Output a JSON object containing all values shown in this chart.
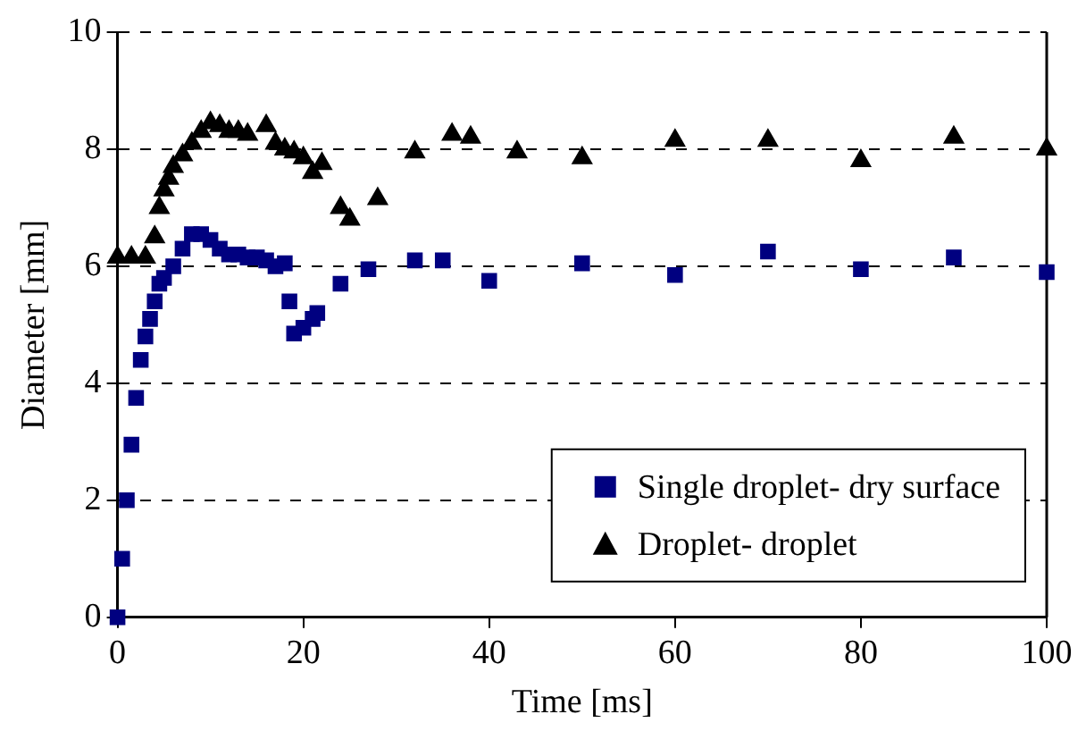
{
  "chart_data": {
    "type": "scatter",
    "xlabel": "Time [ms]",
    "ylabel": "Diameter [mm]",
    "xlim": [
      0,
      100
    ],
    "xticks": [
      0,
      20,
      40,
      60,
      80,
      100
    ],
    "ylim": [
      0,
      10
    ],
    "yticks": [
      0,
      2,
      4,
      6,
      8,
      10
    ],
    "grid": "y",
    "legend": "bottom right",
    "series": [
      {
        "name": "Single droplet- dry surface",
        "color": "#000080",
        "marker": "square",
        "x": [
          0,
          0.5,
          1,
          1.5,
          2,
          2.5,
          3,
          3.5,
          4,
          4.5,
          5,
          6,
          7,
          8,
          9,
          10,
          11,
          12,
          13,
          14,
          15,
          16,
          17,
          18,
          18.5,
          19,
          20,
          21,
          21.5,
          24,
          27,
          32,
          35,
          40,
          50,
          60,
          70,
          80,
          90,
          100
        ],
        "values": [
          0,
          1,
          2,
          2.95,
          3.75,
          4.4,
          4.8,
          5.1,
          5.4,
          5.7,
          5.8,
          6.0,
          6.3,
          6.55,
          6.55,
          6.45,
          6.3,
          6.2,
          6.2,
          6.15,
          6.15,
          6.1,
          6.0,
          6.05,
          5.4,
          4.85,
          4.95,
          5.1,
          5.2,
          5.7,
          5.95,
          6.1,
          6.1,
          5.75,
          6.05,
          5.85,
          6.25,
          5.95,
          6.15,
          5.9
        ]
      },
      {
        "name": "Droplet- droplet",
        "color": "#000000",
        "marker": "triangle",
        "x": [
          0,
          1.5,
          3,
          4,
          4.5,
          5,
          5.5,
          6,
          7,
          8,
          9,
          10,
          11,
          12,
          13,
          14,
          16,
          17,
          18,
          19,
          20,
          21,
          22,
          24,
          25,
          28,
          32,
          36,
          38,
          43,
          50,
          60,
          70,
          80,
          90,
          100
        ],
        "values": [
          6.15,
          6.15,
          6.15,
          6.5,
          7.0,
          7.3,
          7.5,
          7.7,
          7.9,
          8.1,
          8.3,
          8.45,
          8.4,
          8.3,
          8.3,
          8.25,
          8.4,
          8.1,
          8.0,
          7.95,
          7.85,
          7.6,
          7.75,
          7.0,
          6.8,
          7.15,
          7.95,
          8.25,
          8.2,
          7.95,
          7.85,
          8.15,
          8.15,
          7.8,
          8.2,
          8.0
        ]
      }
    ]
  }
}
